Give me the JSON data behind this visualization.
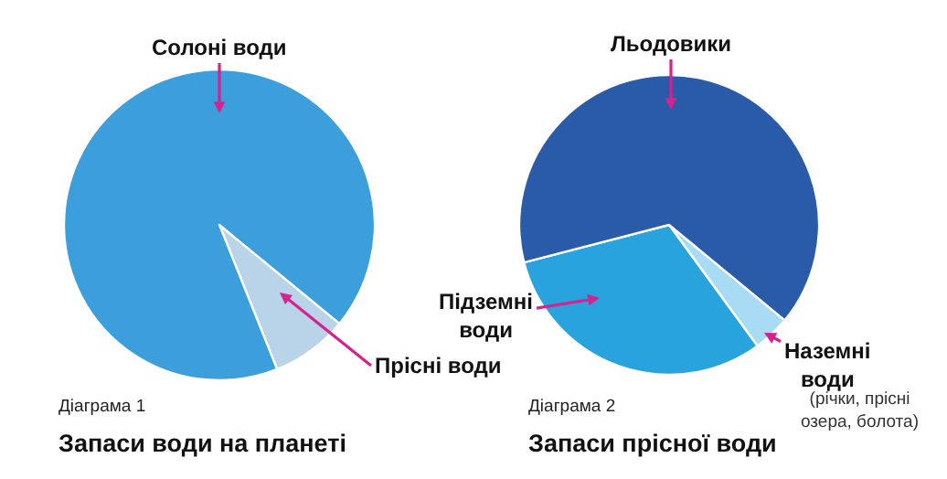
{
  "chart_data": [
    {
      "type": "pie",
      "title": "Запаси води на планеті",
      "subtitle": "Діаграма 1",
      "categories": [
        "Прісні води",
        "Солоні води"
      ],
      "values": [
        8,
        92
      ],
      "colors": [
        "#b9d3e8",
        "#3d9edc"
      ]
    },
    {
      "type": "pie",
      "title": "Запаси прісної води",
      "subtitle": "Діаграма 2",
      "categories": [
        "Наземні води",
        "Підземні води",
        "Льодовики"
      ],
      "values": [
        4,
        31,
        65
      ],
      "colors": [
        "#a8dcf5",
        "#29a3de",
        "#2a5ba8"
      ],
      "annotations": [
        "(річки, прісні озера, болота)"
      ]
    }
  ]
}
